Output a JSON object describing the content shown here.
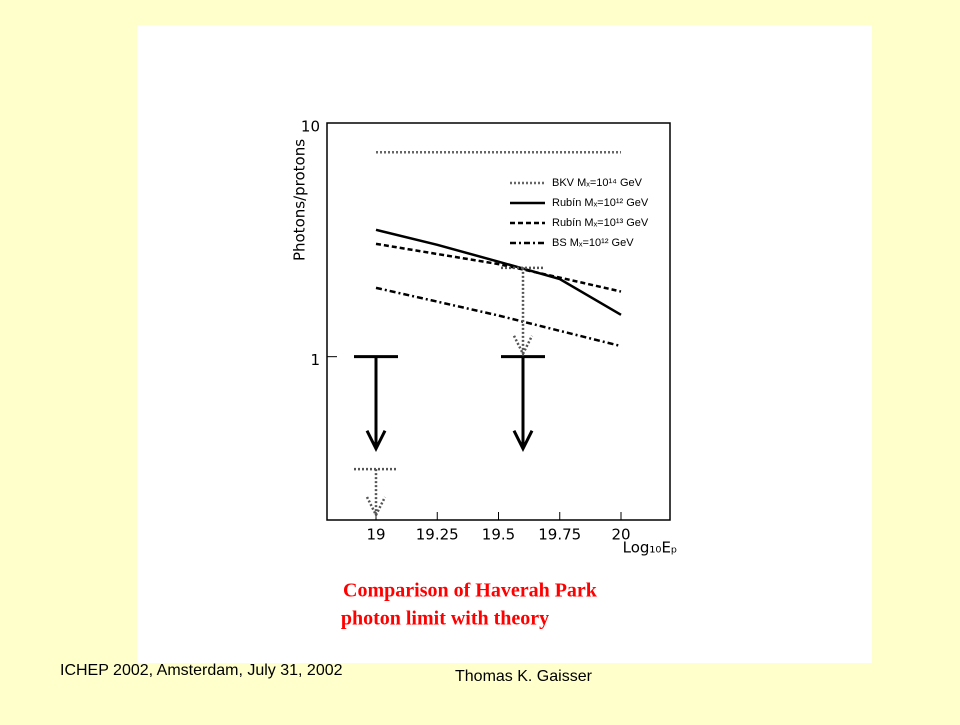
{
  "chart_data": {
    "type": "line",
    "y_label": "Photons/protons",
    "x_label": "Log₁₀Eₚ",
    "caption": [
      "Comparison of Haverah Park",
      "photon limit with theory"
    ],
    "x": [
      19,
      19.25,
      19.5,
      19.75,
      20
    ],
    "xlim": [
      18.8,
      20.2
    ],
    "xticks": [
      19,
      19.25,
      19.5,
      19.75,
      20
    ],
    "ylim": [
      0.2,
      10
    ],
    "yticks": [
      1,
      10
    ],
    "log_y": true,
    "legend": "upper right",
    "series": [
      {
        "name": "BKV Mₓ=10¹⁴ GeV",
        "color": "#666666",
        "style": "dotted",
        "values": [
          7.5,
          7.5,
          7.5,
          7.5,
          7.5
        ]
      },
      {
        "name": "Rubín Mₓ=10¹² GeV",
        "color": "#000000",
        "style": "solid",
        "values": [
          3.49,
          3.01,
          2.55,
          2.15,
          1.51
        ]
      },
      {
        "name": "Rubín Mₓ=10¹³ GeV",
        "color": "#000000",
        "style": "dashed",
        "values": [
          3.04,
          2.75,
          2.49,
          2.18,
          1.9
        ]
      },
      {
        "name": "BS Mₓ=10¹² GeV",
        "color": "#000000",
        "style": "dashdot",
        "values": [
          1.97,
          1.72,
          1.5,
          1.29,
          1.11
        ]
      }
    ],
    "limits": [
      {
        "x": 19,
        "value": 1,
        "style": "solid"
      },
      {
        "x": 19.6,
        "value": 1,
        "style": "solid"
      },
      {
        "x": 19,
        "value": 0.33,
        "style": "dotted"
      },
      {
        "x": 19.6,
        "value": 2.4,
        "style": "dotted"
      }
    ]
  },
  "footer": {
    "left": "ICHEP 2002, Amsterdam, July 31, 2002",
    "right": "Thomas K. Gaisser"
  }
}
